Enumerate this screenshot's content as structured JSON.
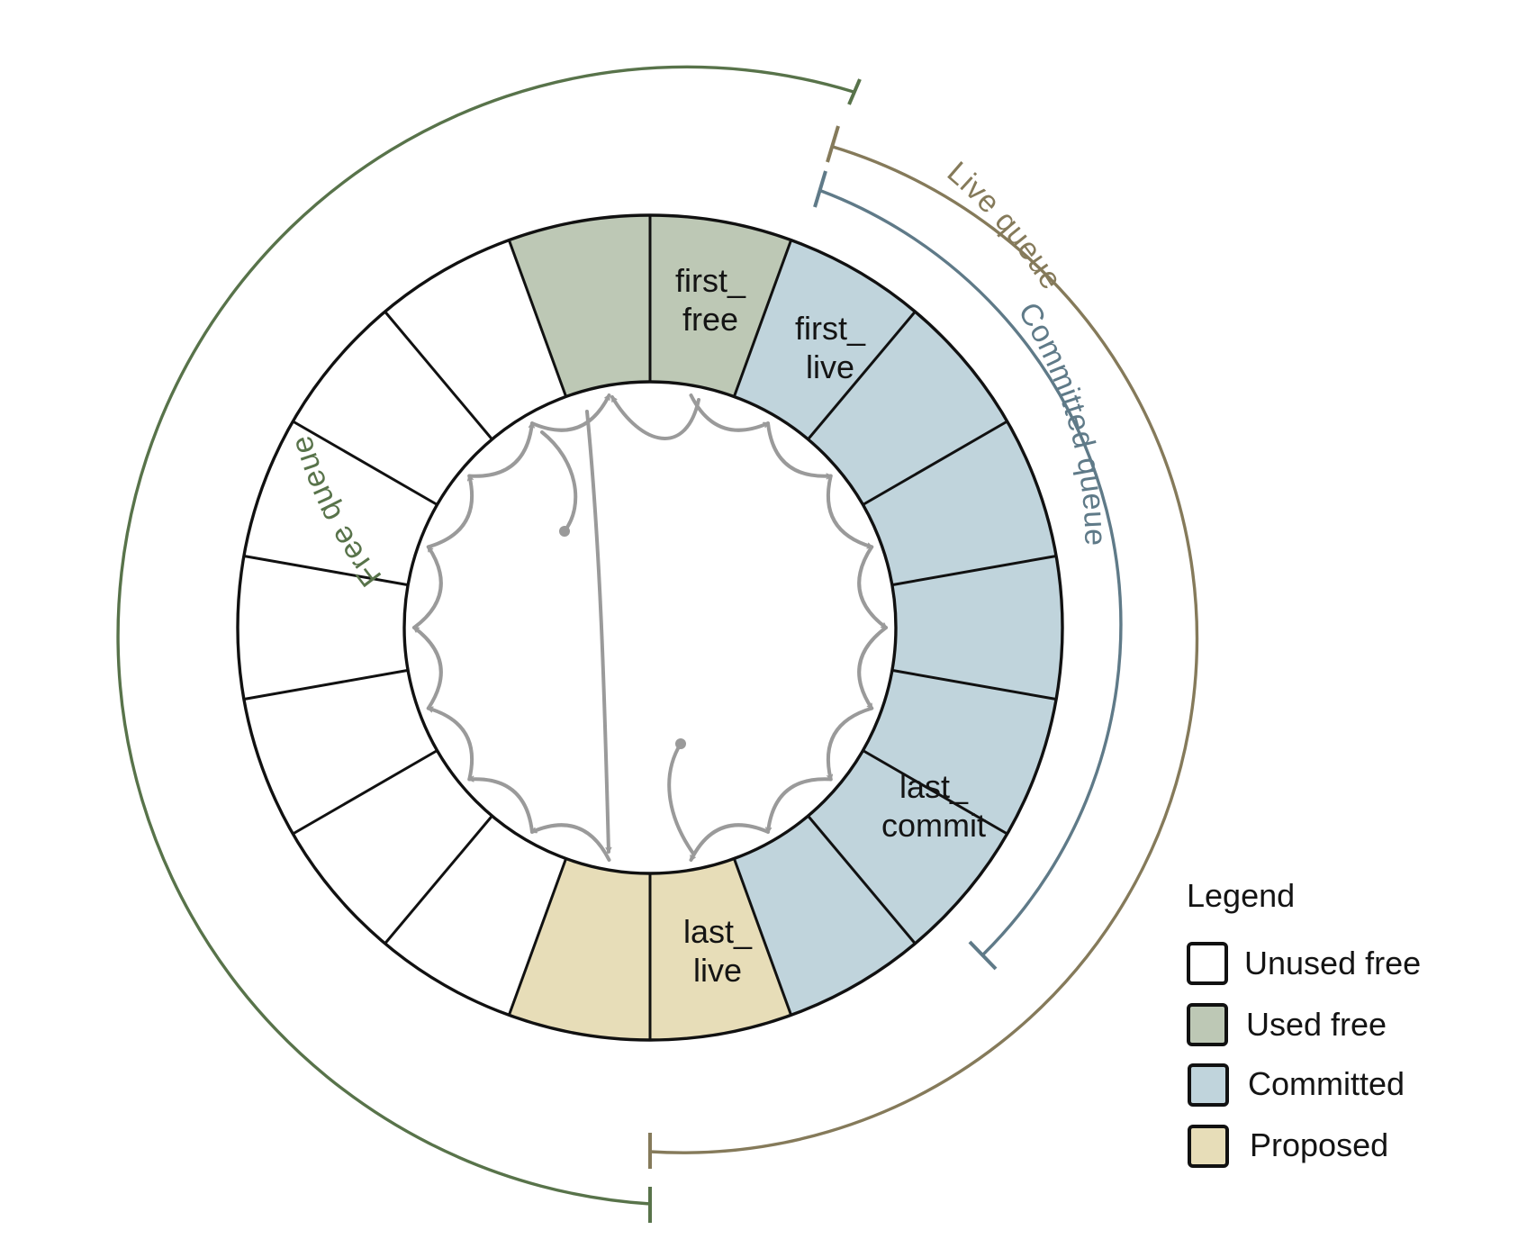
{
  "colors": {
    "unused_free": "#ffffff",
    "used_free": "#bdc8b5",
    "committed": "#c0d4dc",
    "proposed": "#e7ddb8",
    "free_queue": "#58734a",
    "live_queue": "#857a5a",
    "committed_queue": "#5f7a88",
    "link_arrow": "#9a9a9a"
  },
  "ring": {
    "slot_count": 18,
    "slots": [
      "used_free",
      "committed",
      "committed",
      "committed",
      "committed",
      "committed",
      "committed",
      "committed",
      "proposed",
      "proposed",
      "unused_free",
      "unused_free",
      "unused_free",
      "unused_free",
      "unused_free",
      "unused_free",
      "unused_free",
      "used_free"
    ],
    "cell_labels": {
      "first_free": [
        "first_",
        "free"
      ],
      "first_live": [
        "first_",
        "live"
      ],
      "last_commit": [
        "last_",
        "commit"
      ],
      "last_live": [
        "last_",
        "live"
      ]
    }
  },
  "queues": {
    "free": "Free queue",
    "live": "Live queue",
    "committed": "Committed queue"
  },
  "legend": {
    "title": "Legend",
    "items": [
      {
        "label": "Unused free",
        "color_key": "unused_free"
      },
      {
        "label": "Used free",
        "color_key": "used_free"
      },
      {
        "label": "Committed",
        "color_key": "committed"
      },
      {
        "label": "Proposed",
        "color_key": "proposed"
      }
    ]
  }
}
